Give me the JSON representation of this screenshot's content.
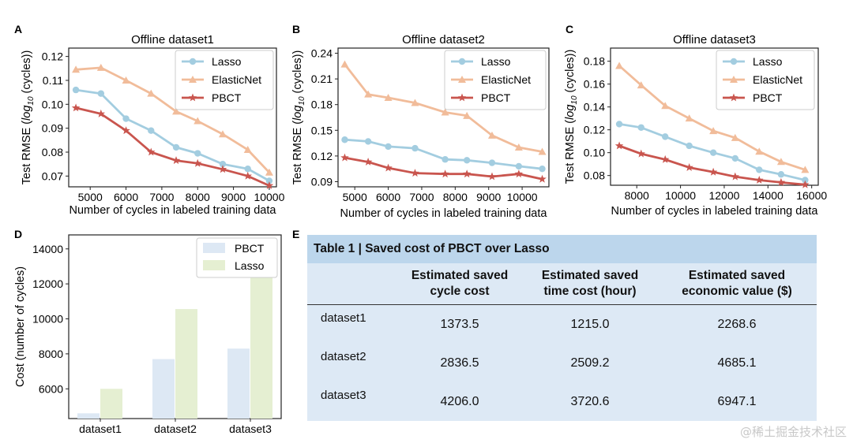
{
  "chart_data": [
    {
      "id": "A",
      "panel_label": "A",
      "type": "line",
      "title": "Offline dataset1",
      "xlabel": "Number of cycles in labeled training data",
      "ylabel_parts": [
        "Test RMSE (",
        "log",
        "10",
        " (cycles))"
      ],
      "xlim": [
        4400,
        10200
      ],
      "ylim": [
        0.0655,
        0.1235
      ],
      "xticks": [
        5000,
        6000,
        7000,
        8000,
        9000,
        10000
      ],
      "yticks": [
        0.07,
        0.08,
        0.09,
        0.1,
        0.11,
        0.12
      ],
      "ytick_labels": [
        "0.07",
        "0.08",
        "0.09",
        "0.10",
        "0.11",
        "0.12"
      ],
      "x": [
        4600,
        5300,
        6000,
        6700,
        7400,
        8000,
        8700,
        9400,
        10000
      ],
      "series": [
        {
          "name": "Lasso",
          "marker": "circle",
          "color": "#a3cde0",
          "values": [
            0.106,
            0.1045,
            0.094,
            0.089,
            0.082,
            0.0795,
            0.075,
            0.073,
            0.068
          ]
        },
        {
          "name": "ElasticNet",
          "marker": "triangle",
          "color": "#f1bc9a",
          "values": [
            0.1145,
            0.1153,
            0.11,
            0.1045,
            0.097,
            0.093,
            0.0875,
            0.081,
            0.0715
          ]
        },
        {
          "name": "PBCT",
          "marker": "star",
          "color": "#c9554e",
          "values": [
            0.0985,
            0.096,
            0.089,
            0.08,
            0.0765,
            0.0753,
            0.0728,
            0.07,
            0.066
          ]
        }
      ],
      "legend_loc": "top-right"
    },
    {
      "id": "B",
      "panel_label": "B",
      "type": "line",
      "title": "Offline dataset2",
      "xlabel": "Number of cycles in labeled training data",
      "ylabel_parts": [
        "Test RMSE (",
        "log",
        "10",
        " (cycles))"
      ],
      "xlim": [
        4500,
        10800
      ],
      "ylim": [
        0.084,
        0.246
      ],
      "xticks": [
        5000,
        6000,
        7000,
        8000,
        9000,
        10000
      ],
      "yticks": [
        0.09,
        0.12,
        0.15,
        0.18,
        0.21,
        0.24
      ],
      "ytick_labels": [
        "0.09",
        "0.12",
        "0.15",
        "0.18",
        "0.21",
        "0.24"
      ],
      "x": [
        4700,
        5400,
        6000,
        6800,
        7700,
        8350,
        9100,
        9900,
        10600
      ],
      "series": [
        {
          "name": "Lasso",
          "marker": "circle",
          "color": "#a3cde0",
          "values": [
            0.139,
            0.137,
            0.131,
            0.129,
            0.116,
            0.115,
            0.112,
            0.108,
            0.105
          ]
        },
        {
          "name": "ElasticNet",
          "marker": "triangle",
          "color": "#f1bc9a",
          "values": [
            0.227,
            0.192,
            0.188,
            0.182,
            0.171,
            0.167,
            0.144,
            0.13,
            0.125
          ]
        },
        {
          "name": "PBCT",
          "marker": "star",
          "color": "#c9554e",
          "values": [
            0.118,
            0.113,
            0.106,
            0.1,
            0.099,
            0.099,
            0.096,
            0.099,
            0.093
          ]
        }
      ],
      "legend_loc": "top-right"
    },
    {
      "id": "C",
      "panel_label": "C",
      "type": "line",
      "title": "Offline dataset3",
      "xlabel": "Number of cycles in labeled training data",
      "ylabel_parts": [
        "Test RMSE (",
        "log",
        "10",
        " (cycles))"
      ],
      "xlim": [
        6800,
        16300
      ],
      "ylim": [
        0.0715,
        0.1915
      ],
      "xticks": [
        8000,
        10000,
        12000,
        14000,
        16000
      ],
      "yticks": [
        0.08,
        0.1,
        0.12,
        0.14,
        0.16,
        0.18
      ],
      "ytick_labels": [
        "0.08",
        "0.10",
        "0.12",
        "0.14",
        "0.16",
        "0.18"
      ],
      "x": [
        7200,
        8200,
        9300,
        10400,
        11500,
        12500,
        13600,
        14600,
        15700
      ],
      "series": [
        {
          "name": "Lasso",
          "marker": "circle",
          "color": "#a3cde0",
          "values": [
            0.125,
            0.122,
            0.114,
            0.106,
            0.1,
            0.095,
            0.085,
            0.081,
            0.076
          ]
        },
        {
          "name": "ElasticNet",
          "marker": "triangle",
          "color": "#f1bc9a",
          "values": [
            0.176,
            0.159,
            0.141,
            0.13,
            0.119,
            0.113,
            0.101,
            0.092,
            0.085
          ]
        },
        {
          "name": "PBCT",
          "marker": "star",
          "color": "#c9554e",
          "values": [
            0.106,
            0.099,
            0.094,
            0.087,
            0.083,
            0.079,
            0.076,
            0.074,
            0.072
          ]
        }
      ],
      "legend_loc": "top-right"
    },
    {
      "id": "D",
      "panel_label": "D",
      "type": "bar",
      "title": "",
      "xlabel": "",
      "ylabel": "Cost (number of cycles)",
      "ylim": [
        4300,
        14800
      ],
      "yticks": [
        6000,
        8000,
        10000,
        12000,
        14000
      ],
      "ytick_labels": [
        "6000",
        "8000",
        "10000",
        "12000",
        "14000"
      ],
      "categories": [
        "dataset1",
        "dataset2",
        "dataset3"
      ],
      "series": [
        {
          "name": "PBCT",
          "color": "#dde8f4",
          "values": [
            4600,
            7700,
            8300
          ]
        },
        {
          "name": "Lasso",
          "color": "#e5efd2",
          "values": [
            6000,
            10560,
            12500
          ]
        }
      ],
      "legend_loc": "top-right"
    }
  ],
  "table": {
    "panel_label": "E",
    "title": "Table 1 | Saved cost of PBCT over Lasso",
    "columns": [
      {
        "line1": "Estimated saved",
        "line2": "cycle cost"
      },
      {
        "line1": "Estimated saved",
        "line2": "time cost (hour)"
      },
      {
        "line1": "Estimated saved",
        "line2": "economic value ($)"
      }
    ],
    "rows": [
      {
        "label": "dataset1",
        "values": [
          "1373.5",
          "1215.0",
          "2268.6"
        ]
      },
      {
        "label": "dataset2",
        "values": [
          "2836.5",
          "2509.2",
          "4685.1"
        ]
      },
      {
        "label": "dataset3",
        "values": [
          "4206.0",
          "3720.6",
          "6947.1"
        ]
      }
    ],
    "colors": {
      "title_bg": "#bcd6ec",
      "body_bg": "#dde9f5"
    }
  },
  "watermark": "@稀土掘金技术社区"
}
